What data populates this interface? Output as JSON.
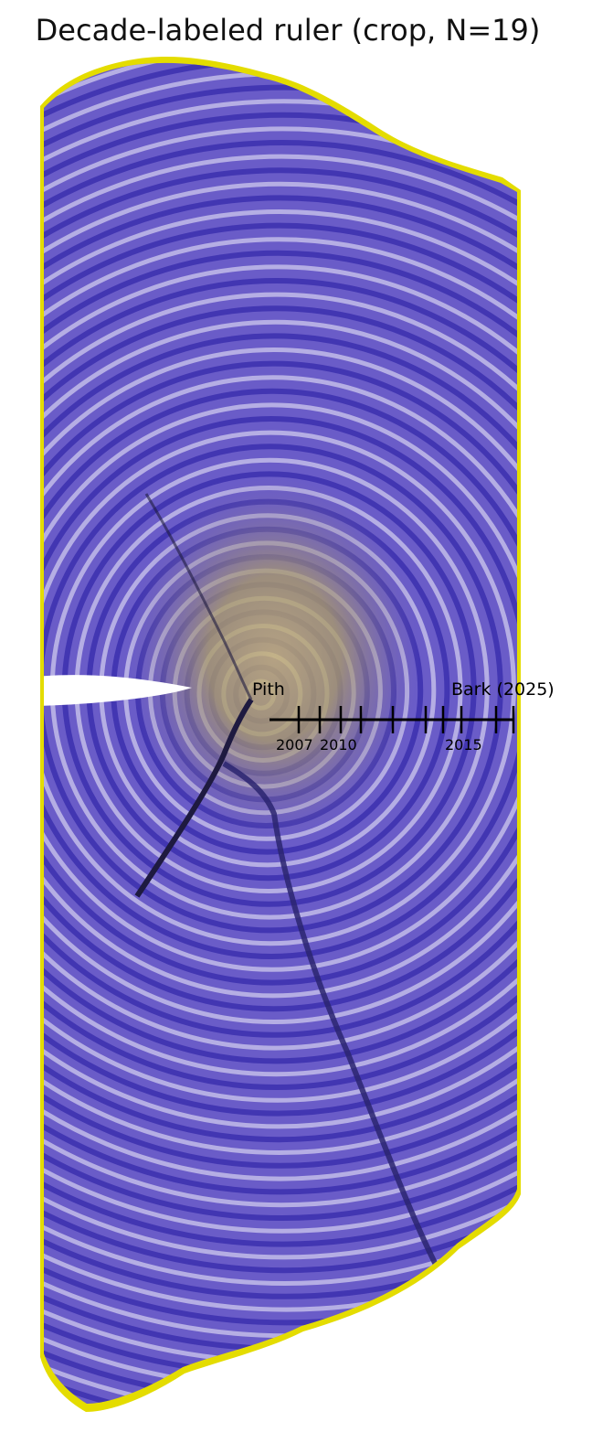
{
  "title": "Decade-labeled ruler (crop, N=19)",
  "ruler": {
    "start_label": "Pith",
    "end_label": "Bark (2025)",
    "tick_labels": [
      "2007",
      "2010",
      "2015"
    ],
    "n_ticks": 19
  },
  "colors": {
    "bark_edge": "#e6e000",
    "ring_dark": "#3a2aa8",
    "ring_light": "#d8d4f0",
    "heartwood": "#b8a85a",
    "crack": "#2a2060"
  }
}
